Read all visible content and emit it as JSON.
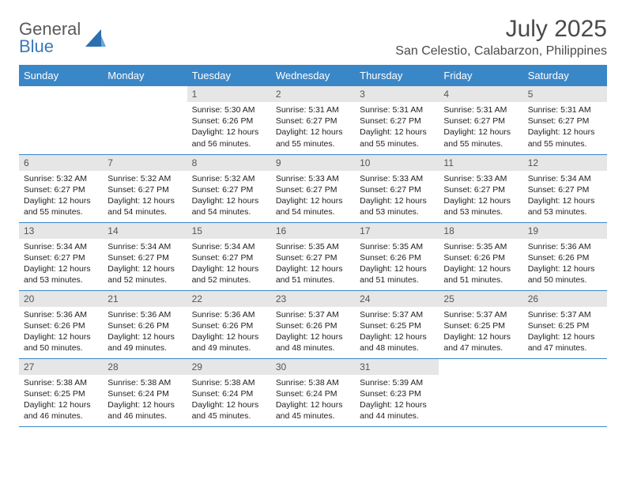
{
  "brand": {
    "line1": "General",
    "line2": "Blue"
  },
  "title": "July 2025",
  "location": "San Celestio, Calabarzon, Philippines",
  "colors": {
    "header_bg": "#3a87c8",
    "header_text": "#ffffff",
    "daynum_bg": "#e6e6e6",
    "daynum_text": "#555555",
    "body_text": "#222222",
    "border": "#3a87c8",
    "brand_gray": "#5a5a5a",
    "brand_blue": "#3a7ab8"
  },
  "fonts": {
    "title_pt": 30,
    "location_pt": 16,
    "dayhead_pt": 13,
    "daynum_pt": 12,
    "body_pt": 10.5
  },
  "dayHeaders": [
    "Sunday",
    "Monday",
    "Tuesday",
    "Wednesday",
    "Thursday",
    "Friday",
    "Saturday"
  ],
  "grid": [
    [
      null,
      null,
      {
        "n": "1",
        "sr": "5:30 AM",
        "ss": "6:26 PM",
        "dl": "12 hours and 56 minutes."
      },
      {
        "n": "2",
        "sr": "5:31 AM",
        "ss": "6:27 PM",
        "dl": "12 hours and 55 minutes."
      },
      {
        "n": "3",
        "sr": "5:31 AM",
        "ss": "6:27 PM",
        "dl": "12 hours and 55 minutes."
      },
      {
        "n": "4",
        "sr": "5:31 AM",
        "ss": "6:27 PM",
        "dl": "12 hours and 55 minutes."
      },
      {
        "n": "5",
        "sr": "5:31 AM",
        "ss": "6:27 PM",
        "dl": "12 hours and 55 minutes."
      }
    ],
    [
      {
        "n": "6",
        "sr": "5:32 AM",
        "ss": "6:27 PM",
        "dl": "12 hours and 55 minutes."
      },
      {
        "n": "7",
        "sr": "5:32 AM",
        "ss": "6:27 PM",
        "dl": "12 hours and 54 minutes."
      },
      {
        "n": "8",
        "sr": "5:32 AM",
        "ss": "6:27 PM",
        "dl": "12 hours and 54 minutes."
      },
      {
        "n": "9",
        "sr": "5:33 AM",
        "ss": "6:27 PM",
        "dl": "12 hours and 54 minutes."
      },
      {
        "n": "10",
        "sr": "5:33 AM",
        "ss": "6:27 PM",
        "dl": "12 hours and 53 minutes."
      },
      {
        "n": "11",
        "sr": "5:33 AM",
        "ss": "6:27 PM",
        "dl": "12 hours and 53 minutes."
      },
      {
        "n": "12",
        "sr": "5:34 AM",
        "ss": "6:27 PM",
        "dl": "12 hours and 53 minutes."
      }
    ],
    [
      {
        "n": "13",
        "sr": "5:34 AM",
        "ss": "6:27 PM",
        "dl": "12 hours and 53 minutes."
      },
      {
        "n": "14",
        "sr": "5:34 AM",
        "ss": "6:27 PM",
        "dl": "12 hours and 52 minutes."
      },
      {
        "n": "15",
        "sr": "5:34 AM",
        "ss": "6:27 PM",
        "dl": "12 hours and 52 minutes."
      },
      {
        "n": "16",
        "sr": "5:35 AM",
        "ss": "6:27 PM",
        "dl": "12 hours and 51 minutes."
      },
      {
        "n": "17",
        "sr": "5:35 AM",
        "ss": "6:26 PM",
        "dl": "12 hours and 51 minutes."
      },
      {
        "n": "18",
        "sr": "5:35 AM",
        "ss": "6:26 PM",
        "dl": "12 hours and 51 minutes."
      },
      {
        "n": "19",
        "sr": "5:36 AM",
        "ss": "6:26 PM",
        "dl": "12 hours and 50 minutes."
      }
    ],
    [
      {
        "n": "20",
        "sr": "5:36 AM",
        "ss": "6:26 PM",
        "dl": "12 hours and 50 minutes."
      },
      {
        "n": "21",
        "sr": "5:36 AM",
        "ss": "6:26 PM",
        "dl": "12 hours and 49 minutes."
      },
      {
        "n": "22",
        "sr": "5:36 AM",
        "ss": "6:26 PM",
        "dl": "12 hours and 49 minutes."
      },
      {
        "n": "23",
        "sr": "5:37 AM",
        "ss": "6:26 PM",
        "dl": "12 hours and 48 minutes."
      },
      {
        "n": "24",
        "sr": "5:37 AM",
        "ss": "6:25 PM",
        "dl": "12 hours and 48 minutes."
      },
      {
        "n": "25",
        "sr": "5:37 AM",
        "ss": "6:25 PM",
        "dl": "12 hours and 47 minutes."
      },
      {
        "n": "26",
        "sr": "5:37 AM",
        "ss": "6:25 PM",
        "dl": "12 hours and 47 minutes."
      }
    ],
    [
      {
        "n": "27",
        "sr": "5:38 AM",
        "ss": "6:25 PM",
        "dl": "12 hours and 46 minutes."
      },
      {
        "n": "28",
        "sr": "5:38 AM",
        "ss": "6:24 PM",
        "dl": "12 hours and 46 minutes."
      },
      {
        "n": "29",
        "sr": "5:38 AM",
        "ss": "6:24 PM",
        "dl": "12 hours and 45 minutes."
      },
      {
        "n": "30",
        "sr": "5:38 AM",
        "ss": "6:24 PM",
        "dl": "12 hours and 45 minutes."
      },
      {
        "n": "31",
        "sr": "5:39 AM",
        "ss": "6:23 PM",
        "dl": "12 hours and 44 minutes."
      },
      null,
      null
    ]
  ],
  "labels": {
    "sunrise": "Sunrise:",
    "sunset": "Sunset:",
    "daylight": "Daylight:"
  }
}
